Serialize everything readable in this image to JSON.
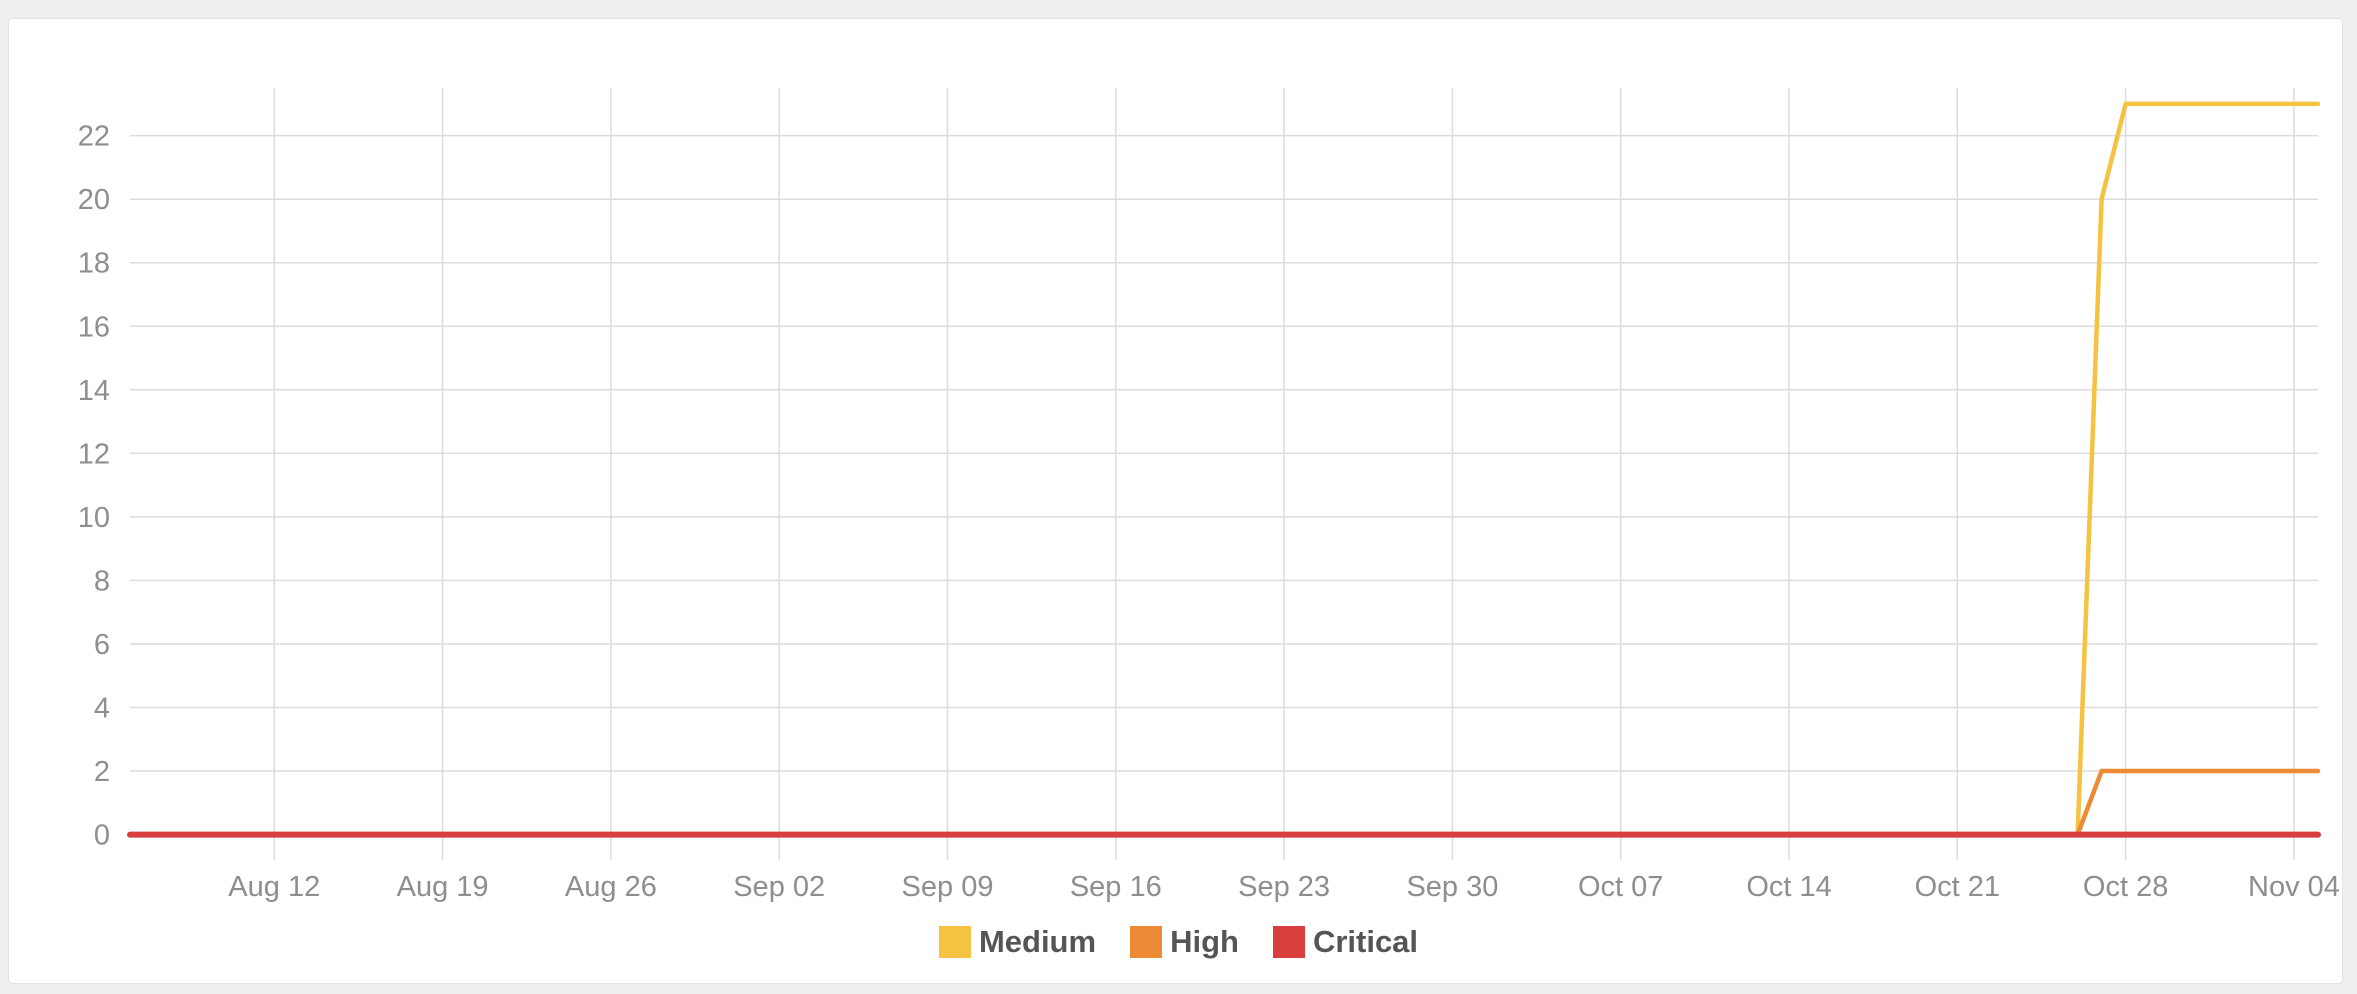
{
  "chart_data": {
    "type": "line",
    "title": "",
    "xlabel": "",
    "ylabel": "",
    "x_ticks": [
      "Aug 12",
      "Aug 19",
      "Aug 26",
      "Sep 02",
      "Sep 09",
      "Sep 16",
      "Sep 23",
      "Sep 30",
      "Oct 07",
      "Oct 14",
      "Oct 21",
      "Oct 28",
      "Nov 04"
    ],
    "y_ticks": [
      0,
      2,
      4,
      6,
      8,
      10,
      12,
      14,
      16,
      18,
      20,
      22
    ],
    "xlim": [
      "Aug 06",
      "Nov 05"
    ],
    "ylim": [
      -0.8,
      23.5
    ],
    "grid": true,
    "legend_position": "bottom",
    "series": [
      {
        "name": "Medium",
        "color": "#f5c242",
        "points": [
          [
            "Aug 06",
            0
          ],
          [
            "Oct 26",
            0
          ],
          [
            "Oct 27",
            20
          ],
          [
            "Oct 28",
            23
          ],
          [
            "Nov 05",
            23
          ]
        ]
      },
      {
        "name": "High",
        "color": "#ec8a35",
        "points": [
          [
            "Aug 06",
            0
          ],
          [
            "Oct 26",
            0
          ],
          [
            "Oct 27",
            2
          ],
          [
            "Nov 05",
            2
          ]
        ]
      },
      {
        "name": "Critical",
        "color": "#d93e3e",
        "points": [
          [
            "Aug 06",
            0
          ],
          [
            "Nov 05",
            0
          ]
        ]
      }
    ]
  }
}
